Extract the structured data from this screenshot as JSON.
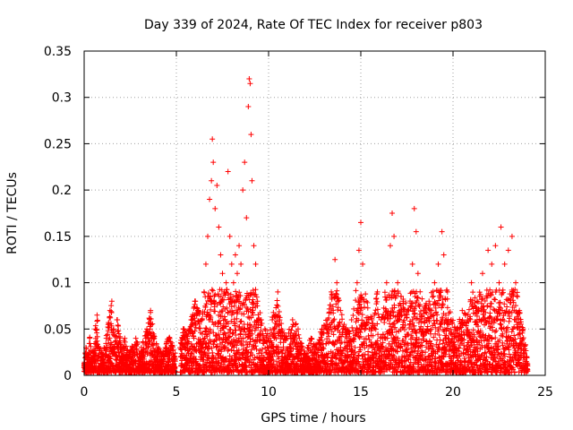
{
  "chart_data": {
    "type": "scatter",
    "title": "Day 339 of 2024, Rate Of TEC Index for receiver p803",
    "xlabel": "GPS time / hours",
    "ylabel": "ROTI / TECUs",
    "xlim": [
      0,
      25
    ],
    "ylim": [
      0,
      0.35
    ],
    "x_ticks": [
      0,
      5,
      10,
      15,
      20,
      25
    ],
    "x_tick_labels": [
      "0",
      "5",
      "10",
      "15",
      "20",
      "25"
    ],
    "y_ticks": [
      0,
      0.05,
      0.1,
      0.15,
      0.2,
      0.25,
      0.3,
      0.35
    ],
    "y_tick_labels": [
      "0",
      "0.05",
      "0.1",
      "0.15",
      "0.2",
      "0.25",
      "0.3",
      "0.35"
    ],
    "grid": true,
    "marker": "+",
    "series": [
      {
        "name": "ROTI",
        "color": "#ff0000",
        "points": [
          [
            0.0,
            0.01
          ],
          [
            0.1,
            0.03
          ],
          [
            0.2,
            0.02
          ],
          [
            0.3,
            0.04
          ],
          [
            0.5,
            0.02
          ],
          [
            0.6,
            0.05
          ],
          [
            0.7,
            0.065
          ],
          [
            0.8,
            0.03
          ],
          [
            1.0,
            0.02
          ],
          [
            1.2,
            0.04
          ],
          [
            1.4,
            0.07
          ],
          [
            1.5,
            0.08
          ],
          [
            1.6,
            0.05
          ],
          [
            1.8,
            0.06
          ],
          [
            2.0,
            0.03
          ],
          [
            2.2,
            0.04
          ],
          [
            2.4,
            0.02
          ],
          [
            2.6,
            0.03
          ],
          [
            2.8,
            0.04
          ],
          [
            3.0,
            0.02
          ],
          [
            3.2,
            0.035
          ],
          [
            3.4,
            0.05
          ],
          [
            3.6,
            0.07
          ],
          [
            3.8,
            0.04
          ],
          [
            4.0,
            0.03
          ],
          [
            4.2,
            0.02
          ],
          [
            4.4,
            0.03
          ],
          [
            4.6,
            0.04
          ],
          [
            4.8,
            0.03
          ],
          [
            4.9,
            0.02
          ],
          [
            5.2,
            0.03
          ],
          [
            5.4,
            0.05
          ],
          [
            5.6,
            0.04
          ],
          [
            5.8,
            0.06
          ],
          [
            6.0,
            0.08
          ],
          [
            6.2,
            0.07
          ],
          [
            6.4,
            0.06
          ],
          [
            6.5,
            0.09
          ],
          [
            6.6,
            0.12
          ],
          [
            6.7,
            0.15
          ],
          [
            6.8,
            0.19
          ],
          [
            6.9,
            0.21
          ],
          [
            6.95,
            0.255
          ],
          [
            7.0,
            0.23
          ],
          [
            7.1,
            0.18
          ],
          [
            7.2,
            0.205
          ],
          [
            7.3,
            0.16
          ],
          [
            7.4,
            0.13
          ],
          [
            7.5,
            0.11
          ],
          [
            7.6,
            0.09
          ],
          [
            7.7,
            0.1
          ],
          [
            7.8,
            0.22
          ],
          [
            7.9,
            0.15
          ],
          [
            8.0,
            0.12
          ],
          [
            8.1,
            0.1
          ],
          [
            8.2,
            0.13
          ],
          [
            8.3,
            0.11
          ],
          [
            8.4,
            0.14
          ],
          [
            8.5,
            0.12
          ],
          [
            8.6,
            0.2
          ],
          [
            8.7,
            0.23
          ],
          [
            8.8,
            0.17
          ],
          [
            8.9,
            0.29
          ],
          [
            8.95,
            0.32
          ],
          [
            9.0,
            0.315
          ],
          [
            9.05,
            0.26
          ],
          [
            9.1,
            0.21
          ],
          [
            9.2,
            0.14
          ],
          [
            9.3,
            0.12
          ],
          [
            9.4,
            0.08
          ],
          [
            9.6,
            0.06
          ],
          [
            9.8,
            0.05
          ],
          [
            10.0,
            0.04
          ],
          [
            10.2,
            0.06
          ],
          [
            10.5,
            0.09
          ],
          [
            10.7,
            0.05
          ],
          [
            11.0,
            0.04
          ],
          [
            11.3,
            0.06
          ],
          [
            11.6,
            0.05
          ],
          [
            12.0,
            0.02
          ],
          [
            12.3,
            0.04
          ],
          [
            12.6,
            0.03
          ],
          [
            12.9,
            0.05
          ],
          [
            13.2,
            0.06
          ],
          [
            13.4,
            0.09
          ],
          [
            13.6,
            0.125
          ],
          [
            13.7,
            0.1
          ],
          [
            13.9,
            0.07
          ],
          [
            14.2,
            0.05
          ],
          [
            14.5,
            0.06
          ],
          [
            14.8,
            0.1
          ],
          [
            14.9,
            0.135
          ],
          [
            15.0,
            0.165
          ],
          [
            15.1,
            0.12
          ],
          [
            15.3,
            0.08
          ],
          [
            15.6,
            0.06
          ],
          [
            15.9,
            0.09
          ],
          [
            16.1,
            0.06
          ],
          [
            16.4,
            0.1
          ],
          [
            16.6,
            0.14
          ],
          [
            16.7,
            0.175
          ],
          [
            16.8,
            0.15
          ],
          [
            17.0,
            0.1
          ],
          [
            17.3,
            0.08
          ],
          [
            17.6,
            0.07
          ],
          [
            17.8,
            0.12
          ],
          [
            17.9,
            0.18
          ],
          [
            18.0,
            0.155
          ],
          [
            18.1,
            0.11
          ],
          [
            18.4,
            0.07
          ],
          [
            18.7,
            0.08
          ],
          [
            19.0,
            0.1
          ],
          [
            19.2,
            0.12
          ],
          [
            19.4,
            0.155
          ],
          [
            19.5,
            0.13
          ],
          [
            19.7,
            0.09
          ],
          [
            19.9,
            0.06
          ],
          [
            20.2,
            0.05
          ],
          [
            20.5,
            0.07
          ],
          [
            20.8,
            0.06
          ],
          [
            21.0,
            0.1
          ],
          [
            21.3,
            0.08
          ],
          [
            21.6,
            0.11
          ],
          [
            21.9,
            0.135
          ],
          [
            22.1,
            0.12
          ],
          [
            22.3,
            0.14
          ],
          [
            22.5,
            0.1
          ],
          [
            22.6,
            0.16
          ],
          [
            22.8,
            0.12
          ],
          [
            23.0,
            0.135
          ],
          [
            23.2,
            0.15
          ],
          [
            23.4,
            0.1
          ],
          [
            23.6,
            0.07
          ],
          [
            23.8,
            0.05
          ],
          [
            24.0,
            0.02
          ]
        ]
      }
    ]
  }
}
